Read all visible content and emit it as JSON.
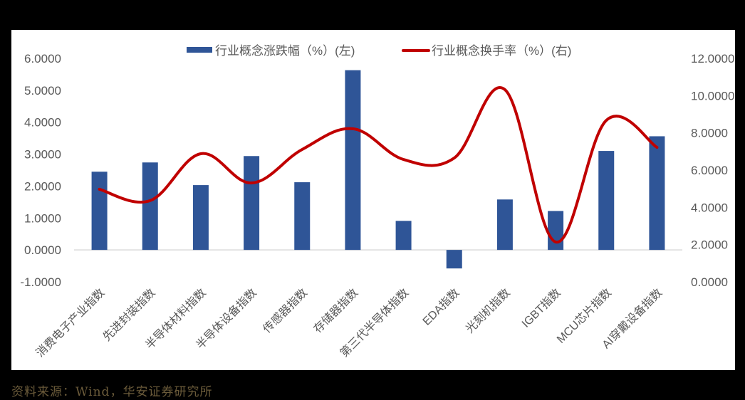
{
  "chart_data": {
    "type": "bar+line",
    "title": "",
    "categories": [
      "消费电子产业指数",
      "先进封装指数",
      "半导体材料指数",
      "半导体设备指数",
      "传感器指数",
      "存储器指数",
      "第三代半导体指数",
      "EDA指数",
      "光刻机指数",
      "IGBT指数",
      "MCU芯片指数",
      "AI穿戴设备指数"
    ],
    "series": [
      {
        "name": "行业概念涨跌幅（%）(左)",
        "type": "bar",
        "axis": "left",
        "color": "#2F5597",
        "values": [
          2.45,
          2.74,
          2.03,
          2.94,
          2.12,
          5.63,
          0.91,
          -0.58,
          1.58,
          1.22,
          3.1,
          3.56
        ]
      },
      {
        "name": "行业概念换手率（%）(右)",
        "type": "line",
        "smooth": true,
        "axis": "right",
        "color": "#C00000",
        "values": [
          4.97,
          4.36,
          6.88,
          5.31,
          7.11,
          8.22,
          6.57,
          6.65,
          10.32,
          2.14,
          8.67,
          7.22
        ]
      }
    ],
    "left_axis": {
      "min": -1,
      "max": 6,
      "step": 1,
      "ticks": [
        "6.0000",
        "5.0000",
        "4.0000",
        "3.0000",
        "2.0000",
        "1.0000",
        "0.0000",
        "-1.0000"
      ]
    },
    "right_axis": {
      "min": 0,
      "max": 12,
      "step": 2,
      "ticks": [
        "12.0000",
        "10.0000",
        "8.0000",
        "6.0000",
        "4.0000",
        "2.0000",
        "0.0000"
      ]
    },
    "grid": false,
    "legend_position": "top"
  },
  "legend": {
    "bar_label": "行业概念涨跌幅（%）(左)",
    "line_label": "行业概念换手率（%）(右)"
  },
  "source": "资料来源：Wind，华安证券研究所"
}
